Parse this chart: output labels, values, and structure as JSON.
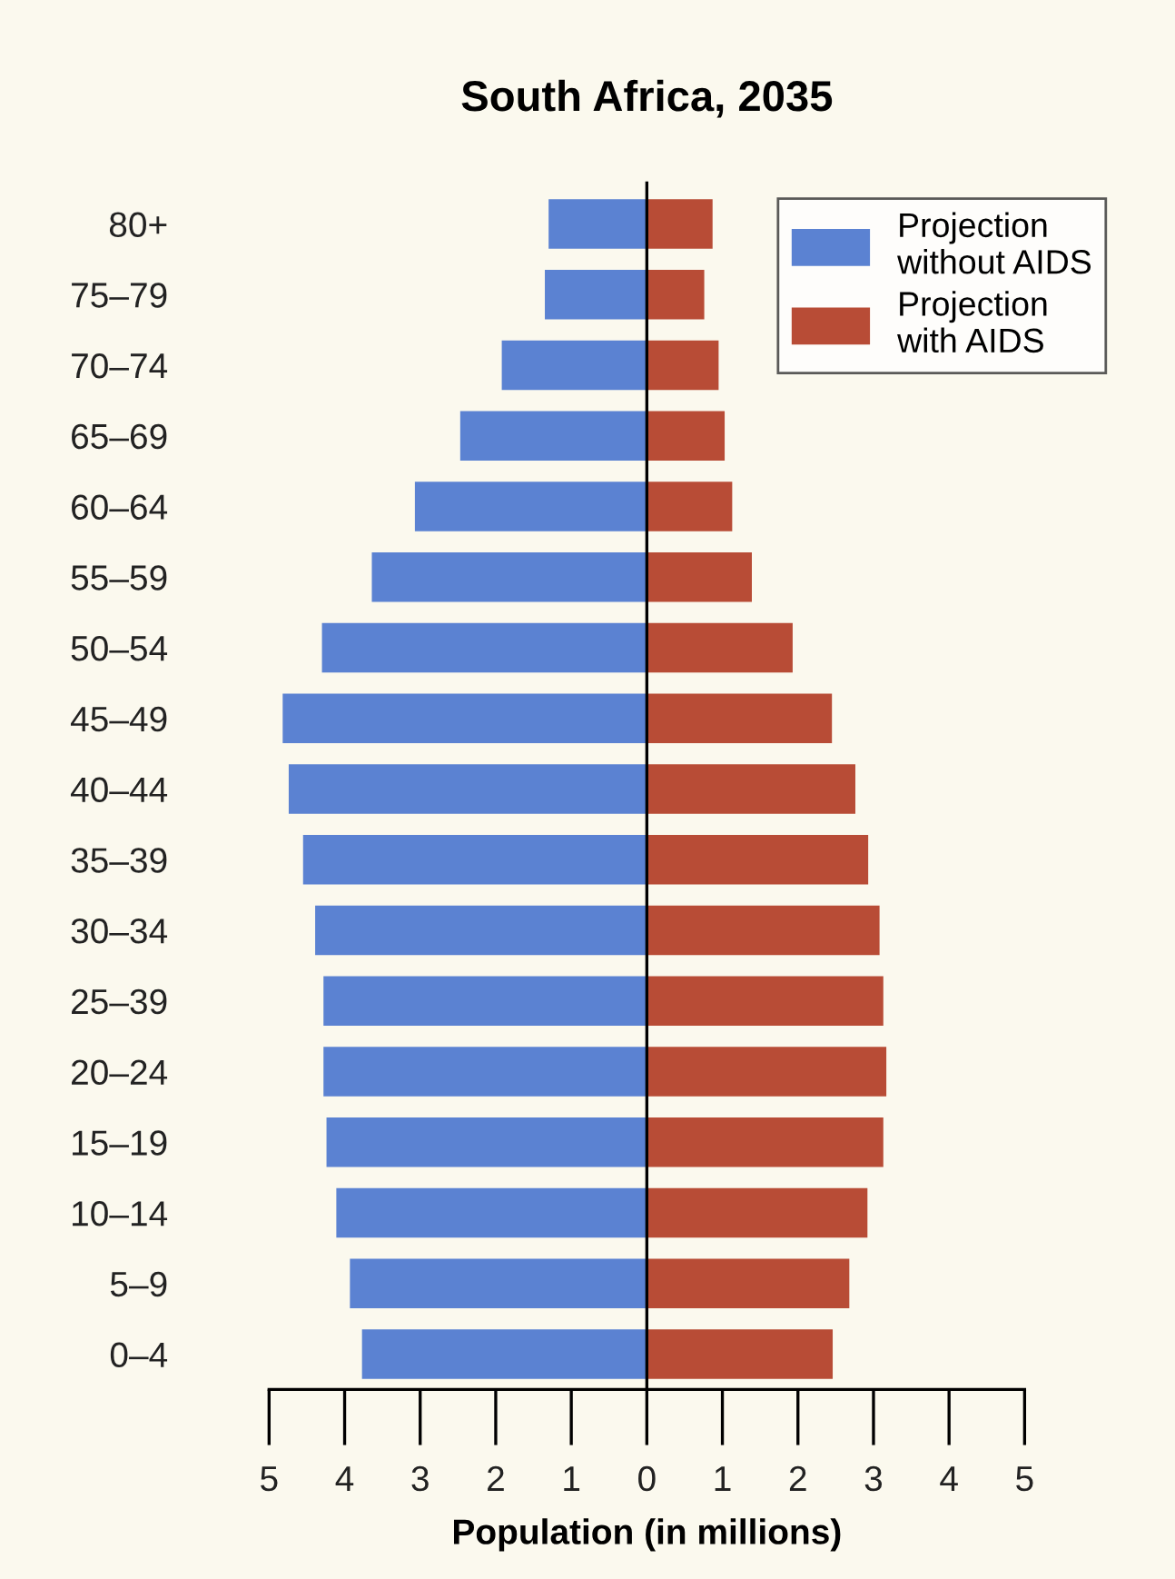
{
  "chart_data": {
    "type": "bar",
    "orientation": "horizontal",
    "title": "South Africa, 2035",
    "xlabel": "Population (in millions)",
    "categories": [
      "80+",
      "75–79",
      "70–74",
      "65–69",
      "60–64",
      "55–59",
      "50–54",
      "45–49",
      "40–44",
      "35–39",
      "30–34",
      "25–39",
      "20–24",
      "15–19",
      "10–14",
      "5–9",
      "0–4"
    ],
    "series": [
      {
        "name": "Projection\nwithout AIDS",
        "color": "#5b82d2",
        "values": [
          -1.3,
          -1.35,
          -1.92,
          -2.47,
          -3.07,
          -3.64,
          -4.3,
          -4.82,
          -4.74,
          -4.55,
          -4.39,
          -4.28,
          -4.28,
          -4.24,
          -4.11,
          -3.93,
          -3.77
        ]
      },
      {
        "name": "Projection\nwith AIDS",
        "color": "#b84c36",
        "values": [
          0.87,
          0.76,
          0.95,
          1.03,
          1.13,
          1.39,
          1.93,
          2.45,
          2.76,
          2.93,
          3.08,
          3.13,
          3.17,
          3.13,
          2.92,
          2.68,
          2.46
        ]
      }
    ],
    "xlim": [
      -5,
      5
    ],
    "xticks": [
      {
        "value": -5,
        "label": "5"
      },
      {
        "value": -4,
        "label": "4"
      },
      {
        "value": -3,
        "label": "3"
      },
      {
        "value": -2,
        "label": "2"
      },
      {
        "value": -1,
        "label": "1"
      },
      0,
      1,
      2,
      3,
      4,
      5
    ],
    "stacked": true,
    "ref_lines": [
      {
        "axis": "x",
        "value": 0,
        "color": "#000000"
      }
    ],
    "legend": "top right"
  }
}
